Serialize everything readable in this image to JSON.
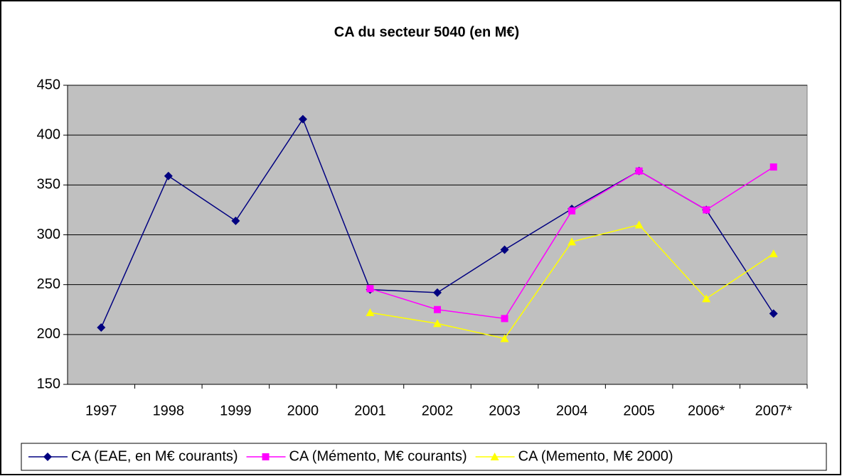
{
  "chart_data": {
    "type": "line",
    "title": "CA  du secteur 5040 (en M€)",
    "categories": [
      "1997",
      "1998",
      "1999",
      "2000",
      "2001",
      "2002",
      "2003",
      "2004",
      "2005",
      "2006*",
      "2007*"
    ],
    "series": [
      {
        "name": "CA (EAE, en M€ courants)",
        "color": "#000080",
        "marker": "diamond",
        "values": [
          207,
          359,
          314,
          416,
          245,
          242,
          285,
          326,
          364,
          325,
          221
        ]
      },
      {
        "name": "CA (Mémento, M€ courants)",
        "color": "#FF00FF",
        "marker": "square",
        "values": [
          null,
          null,
          null,
          null,
          246,
          225,
          216,
          324,
          364,
          325,
          368
        ]
      },
      {
        "name": "CA (Memento, M€ 2000)",
        "color": "#FFFF00",
        "marker": "triangle",
        "values": [
          null,
          null,
          null,
          null,
          222,
          211,
          196,
          293,
          310,
          236,
          281
        ]
      }
    ],
    "ylim": [
      150,
      450
    ],
    "yticks": [
      150,
      200,
      250,
      300,
      350,
      400,
      450
    ],
    "grid": true,
    "legend": "bottom",
    "plot_background": "#C0C0C0"
  }
}
